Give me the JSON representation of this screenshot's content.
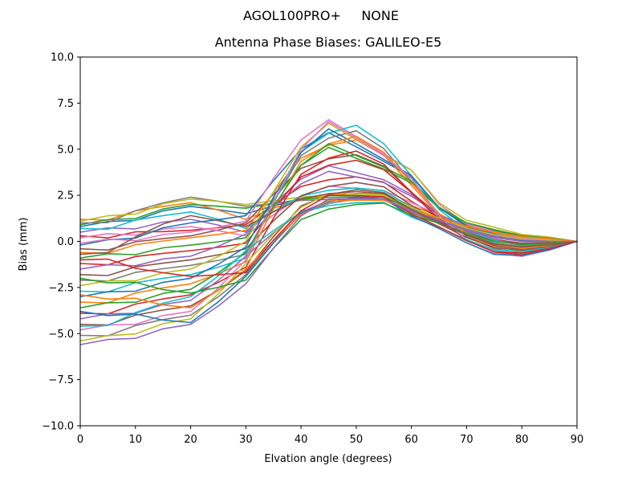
{
  "figure": {
    "suptitle": "AGOL100PRO+     NONE",
    "title": "Antenna Phase Biases: GALILEO-E5",
    "xlabel": "Elvation angle (degrees)",
    "ylabel": "Bias (mm)"
  },
  "chart_data": {
    "type": "line",
    "suptitle": "AGOL100PRO+     NONE",
    "title": "Antenna Phase Biases: GALILEO-E5",
    "xlabel": "Elvation angle (degrees)",
    "ylabel": "Bias (mm)",
    "xlim": [
      0,
      90
    ],
    "ylim": [
      -10,
      10
    ],
    "grid": false,
    "legend": null,
    "xticks": [
      0,
      10,
      20,
      30,
      40,
      50,
      60,
      70,
      80,
      90
    ],
    "yticks": [
      {
        "value": 10.0,
        "label": "10.0"
      },
      {
        "value": 7.5,
        "label": "7.5"
      },
      {
        "value": 5.0,
        "label": "5.0"
      },
      {
        "value": 2.5,
        "label": "2.5"
      },
      {
        "value": 0.0,
        "label": "0.0"
      },
      {
        "value": -2.5,
        "label": "−2.5"
      },
      {
        "value": -5.0,
        "label": "−5.0"
      },
      {
        "value": -7.5,
        "label": "−7.5"
      },
      {
        "value": -10.0,
        "label": "−10.0"
      }
    ],
    "x": [
      0,
      5,
      10,
      15,
      20,
      25,
      30,
      35,
      40,
      45,
      50,
      55,
      60,
      65,
      70,
      75,
      80,
      85,
      90
    ],
    "line_width": 1.6,
    "palette": [
      "#1f77b4",
      "#ff7f0e",
      "#2ca02c",
      "#d62728",
      "#9467bd",
      "#8c564b",
      "#e377c2",
      "#7f7f7f",
      "#bcbd22",
      "#17becf"
    ],
    "series": [
      {
        "name": "line-01",
        "color": "#1f77b4",
        "values": [
          0.8,
          1.08,
          1.14,
          1.66,
          1.9,
          1.72,
          1.5,
          1.92,
          2.3,
          2.5,
          2.48,
          2.48,
          1.82,
          1.27,
          0.76,
          0.4,
          0.17,
          0.1,
          0
        ]
      },
      {
        "name": "line-02",
        "color": "#ff7f0e",
        "values": [
          1.2,
          1.16,
          1.66,
          1.9,
          2.1,
          1.7,
          1.2,
          1.79,
          2.32,
          2.52,
          2.6,
          2.59,
          1.94,
          1.39,
          0.91,
          0.61,
          0.34,
          0.2,
          0
        ]
      },
      {
        "name": "line-03",
        "color": "#2ca02c",
        "values": [
          0.9,
          1.18,
          1.24,
          1.76,
          2.0,
          1.91,
          1.8,
          2.05,
          2.28,
          2.4,
          2.4,
          2.41,
          1.74,
          1.2,
          0.68,
          0.3,
          0.09,
          0.05,
          0
        ]
      },
      {
        "name": "line-04",
        "color": "#d62728",
        "values": [
          0.3,
          0.19,
          0.52,
          0.53,
          0.6,
          0.74,
          0.9,
          1.99,
          2.98,
          3.34,
          3.5,
          3.21,
          2.18,
          1.25,
          0.51,
          0.03,
          -0.17,
          -0.1,
          0
        ]
      },
      {
        "name": "line-05",
        "color": "#9467bd",
        "values": [
          0.5,
          0.73,
          0.68,
          1.05,
          1.2,
          0.89,
          0.5,
          2.01,
          3.38,
          4.1,
          3.73,
          3.34,
          2.55,
          1.46,
          0.69,
          0.25,
          0.0,
          0.0,
          0
        ]
      },
      {
        "name": "line-06",
        "color": "#8c564b",
        "values": [
          -0.4,
          -0.47,
          -0.02,
          0.15,
          0.3,
          0.62,
          1.0,
          2.55,
          3.96,
          4.48,
          4.7,
          4.08,
          2.68,
          1.31,
          0.34,
          -0.23,
          -0.43,
          -0.25,
          0
        ]
      },
      {
        "name": "line-07",
        "color": "#e377c2",
        "values": [
          0.2,
          0.42,
          0.34,
          0.67,
          0.8,
          0.58,
          0.3,
          1.43,
          2.46,
          3.0,
          2.87,
          2.76,
          2.11,
          1.41,
          0.84,
          0.52,
          0.26,
          0.15,
          0
        ]
      },
      {
        "name": "line-08",
        "color": "#7f7f7f",
        "values": [
          1.0,
          1.02,
          1.66,
          2.09,
          2.4,
          2.18,
          1.9,
          2.07,
          2.22,
          2.28,
          2.3,
          2.32,
          1.62,
          1.08,
          0.52,
          0.1,
          -0.09,
          -0.05,
          0
        ]
      },
      {
        "name": "line-09",
        "color": "#bcbd22",
        "values": [
          1.1,
          1.39,
          1.48,
          2.04,
          2.3,
          2.17,
          2.0,
          2.21,
          2.4,
          2.5,
          2.48,
          2.48,
          1.84,
          1.29,
          0.79,
          0.45,
          0.21,
          0.13,
          0
        ]
      },
      {
        "name": "line-10",
        "color": "#17becf",
        "values": [
          0.7,
          0.66,
          1.16,
          1.4,
          1.6,
          1.2,
          0.7,
          1.62,
          2.46,
          2.77,
          2.9,
          2.75,
          1.85,
          1.09,
          0.4,
          -0.09,
          -0.26,
          -0.15,
          0
        ]
      },
      {
        "name": "line-11",
        "color": "#1f77b4",
        "values": [
          -0.2,
          0.09,
          0.18,
          0.74,
          1.0,
          1.18,
          1.4,
          3.29,
          5.0,
          5.9,
          5.13,
          4.34,
          3.49,
          1.83,
          0.85,
          0.41,
          0.09,
          0.05,
          0
        ]
      },
      {
        "name": "line-12",
        "color": "#ff7f0e",
        "values": [
          -0.6,
          -0.65,
          -0.18,
          0.02,
          0.2,
          0.38,
          0.6,
          2.66,
          4.52,
          5.21,
          5.5,
          4.67,
          3.04,
          1.41,
          0.31,
          -0.31,
          -0.51,
          -0.3,
          0
        ]
      },
      {
        "name": "line-13",
        "color": "#2ca02c",
        "values": [
          -0.9,
          -0.67,
          -0.72,
          -0.35,
          -0.2,
          -0.02,
          0.2,
          2.26,
          4.12,
          5.1,
          4.51,
          3.92,
          3.16,
          1.79,
          0.96,
          0.58,
          0.26,
          0.15,
          0
        ]
      },
      {
        "name": "line-14",
        "color": "#d62728",
        "values": [
          -1.2,
          -1.27,
          -0.82,
          -0.65,
          -0.5,
          -0.32,
          -0.1,
          1.79,
          3.5,
          4.13,
          4.4,
          3.89,
          2.65,
          1.44,
          0.59,
          0.11,
          -0.13,
          -0.08,
          0
        ]
      },
      {
        "name": "line-15",
        "color": "#9467bd",
        "values": [
          -1.5,
          -1.27,
          -1.32,
          -0.95,
          -0.8,
          -0.26,
          0.4,
          1.83,
          3.12,
          3.8,
          3.49,
          3.19,
          2.45,
          1.48,
          0.78,
          0.39,
          0.13,
          0.08,
          0
        ]
      },
      {
        "name": "line-16",
        "color": "#8c564b",
        "values": [
          -1.8,
          -1.85,
          -1.38,
          -1.18,
          -1.0,
          -0.73,
          -0.4,
          1.11,
          2.48,
          2.98,
          3.2,
          2.96,
          1.96,
          1.09,
          0.34,
          -0.18,
          -0.34,
          -0.2,
          0
        ]
      },
      {
        "name": "line-17",
        "color": "#e377c2",
        "values": [
          -0.1,
          0.12,
          0.04,
          0.37,
          0.5,
          0.77,
          1.1,
          3.41,
          5.5,
          6.6,
          5.68,
          4.73,
          3.87,
          2.01,
          0.96,
          0.53,
          0.17,
          0.1,
          0
        ]
      },
      {
        "name": "line-18",
        "color": "#7f7f7f",
        "values": [
          -2.1,
          -2.15,
          -1.68,
          -1.48,
          -1.3,
          -1.03,
          -0.7,
          2.11,
          4.66,
          5.6,
          6.0,
          5.03,
          3.26,
          1.45,
          0.26,
          -0.39,
          -0.6,
          -0.35,
          0
        ]
      },
      {
        "name": "line-19",
        "color": "#bcbd22",
        "values": [
          -2.4,
          -2.14,
          -2.14,
          -1.7,
          -1.5,
          -0.83,
          0.0,
          2.69,
          5.12,
          6.4,
          5.52,
          4.65,
          3.86,
          2.1,
          1.14,
          0.77,
          0.38,
          0.23,
          0
        ]
      },
      {
        "name": "line-20",
        "color": "#17becf",
        "values": [
          -2.7,
          -2.74,
          -2.24,
          -2.0,
          -1.8,
          -1.4,
          -0.9,
          2.12,
          4.86,
          5.87,
          6.3,
          5.3,
          3.56,
          1.73,
          0.61,
          0.07,
          -0.21,
          -0.13,
          0
        ]
      },
      {
        "name": "line-21",
        "color": "#1f77b4",
        "values": [
          -3.0,
          -2.73,
          -2.7,
          -2.22,
          -2.0,
          -1.24,
          -0.3,
          2.39,
          4.82,
          6.1,
          5.29,
          4.44,
          3.57,
          1.84,
          0.82,
          0.36,
          0.04,
          0.03,
          0
        ]
      },
      {
        "name": "line-22",
        "color": "#ff7f0e",
        "values": [
          -3.3,
          -3.33,
          -2.8,
          -2.52,
          -2.3,
          -1.76,
          -1.1,
          1.76,
          4.34,
          5.29,
          5.7,
          4.83,
          3.19,
          1.52,
          0.43,
          -0.15,
          -0.38,
          -0.23,
          0
        ]
      },
      {
        "name": "line-23",
        "color": "#2ca02c",
        "values": [
          -3.6,
          -3.33,
          -3.3,
          -2.82,
          -2.6,
          -1.7,
          -0.6,
          1.88,
          4.12,
          5.3,
          4.66,
          4.03,
          3.27,
          1.85,
          1.01,
          0.64,
          0.3,
          0.18,
          0
        ]
      },
      {
        "name": "line-24",
        "color": "#d62728",
        "values": [
          -3.9,
          -3.93,
          -3.4,
          -3.12,
          -2.9,
          -2.23,
          -1.4,
          1.25,
          3.64,
          4.52,
          4.9,
          4.19,
          2.65,
          1.18,
          0.09,
          -0.58,
          -0.72,
          -0.43,
          0
        ]
      },
      {
        "name": "line-25",
        "color": "#9467bd",
        "values": [
          -4.2,
          -3.93,
          -3.9,
          -3.42,
          -3.2,
          -2.12,
          -0.8,
          0.46,
          1.6,
          2.2,
          2.24,
          2.23,
          1.64,
          1.16,
          0.67,
          0.29,
          0.09,
          0.05,
          0
        ]
      },
      {
        "name": "line-26",
        "color": "#8c564b",
        "values": [
          -4.5,
          -4.53,
          -4.0,
          -3.72,
          -3.5,
          -2.65,
          -1.6,
          0.25,
          1.92,
          2.54,
          2.8,
          2.65,
          1.71,
          0.95,
          0.21,
          -0.34,
          -0.47,
          -0.28,
          0
        ]
      },
      {
        "name": "line-27",
        "color": "#e377c2",
        "values": [
          -4.8,
          -4.53,
          -4.5,
          -4.02,
          -3.8,
          -2.54,
          -1.0,
          2.15,
          5.0,
          6.5,
          5.6,
          4.65,
          3.42,
          1.41,
          0.09,
          -0.63,
          -0.81,
          -0.48,
          0
        ]
      },
      {
        "name": "line-28",
        "color": "#7f7f7f",
        "values": [
          -5.1,
          -5.12,
          -4.56,
          -4.24,
          -4.0,
          -3.01,
          -1.8,
          -0.08,
          1.48,
          2.05,
          2.3,
          2.3,
          1.55,
          0.98,
          0.37,
          -0.1,
          -0.26,
          -0.15,
          0
        ]
      },
      {
        "name": "line-29",
        "color": "#bcbd22",
        "values": [
          -5.4,
          -5.11,
          -5.02,
          -4.46,
          -4.2,
          -2.85,
          -1.2,
          0.4,
          1.84,
          2.6,
          2.56,
          2.53,
          1.85,
          1.26,
          0.72,
          0.36,
          0.13,
          0.08,
          0
        ]
      },
      {
        "name": "line-30",
        "color": "#17becf",
        "values": [
          -4.6,
          -4.56,
          -3.86,
          -3.35,
          -3.0,
          -1.88,
          -0.5,
          0.59,
          1.58,
          1.94,
          2.1,
          2.11,
          1.32,
          0.77,
          0.1,
          -0.46,
          -0.55,
          -0.33,
          0
        ]
      },
      {
        "name": "line-31",
        "color": "#1f77b4",
        "values": [
          -3.8,
          -4.02,
          -3.94,
          -4.27,
          -4.4,
          -3.28,
          -1.9,
          -0.09,
          1.54,
          2.14,
          2.4,
          2.31,
          1.39,
          0.7,
          -0.08,
          -0.7,
          -0.77,
          -0.45,
          0
        ]
      },
      {
        "name": "line-32",
        "color": "#ff7f0e",
        "values": [
          -2.9,
          -3.13,
          -3.08,
          -3.45,
          -3.6,
          -2.66,
          -1.5,
          0.05,
          1.46,
          2.2,
          2.24,
          2.23,
          1.71,
          1.26,
          0.82,
          0.49,
          0.26,
          0.15,
          0
        ]
      },
      {
        "name": "line-33",
        "color": "#2ca02c",
        "values": [
          -2.0,
          -2.25,
          -2.22,
          -2.62,
          -2.8,
          -2.49,
          -2.1,
          -0.38,
          1.18,
          1.75,
          2.0,
          2.08,
          1.43,
          0.98,
          0.43,
          -0.01,
          -0.17,
          -0.1,
          0
        ]
      },
      {
        "name": "line-34",
        "color": "#d62728",
        "values": [
          -1.0,
          -0.96,
          -1.46,
          -1.7,
          -1.9,
          -1.81,
          -1.7,
          0.06,
          1.66,
          2.5,
          2.48,
          2.41,
          1.49,
          0.79,
          0.04,
          -0.55,
          -0.64,
          -0.38,
          0
        ]
      },
      {
        "name": "line-35",
        "color": "#9467bd",
        "values": [
          -5.6,
          -5.32,
          -5.26,
          -4.74,
          -4.5,
          -3.51,
          -2.3,
          -0.37,
          1.38,
          2.3,
          2.32,
          2.31,
          1.65,
          1.13,
          0.6,
          0.2,
          0.0,
          0.0,
          0
        ]
      },
      {
        "name": "line-36",
        "color": "#8c564b",
        "values": [
          -0.7,
          -0.6,
          0.24,
          0.94,
          1.4,
          1.13,
          0.8,
          1.6,
          2.32,
          2.59,
          2.7,
          2.59,
          1.73,
          1.03,
          0.35,
          -0.14,
          -0.3,
          -0.18,
          0
        ]
      }
    ]
  }
}
